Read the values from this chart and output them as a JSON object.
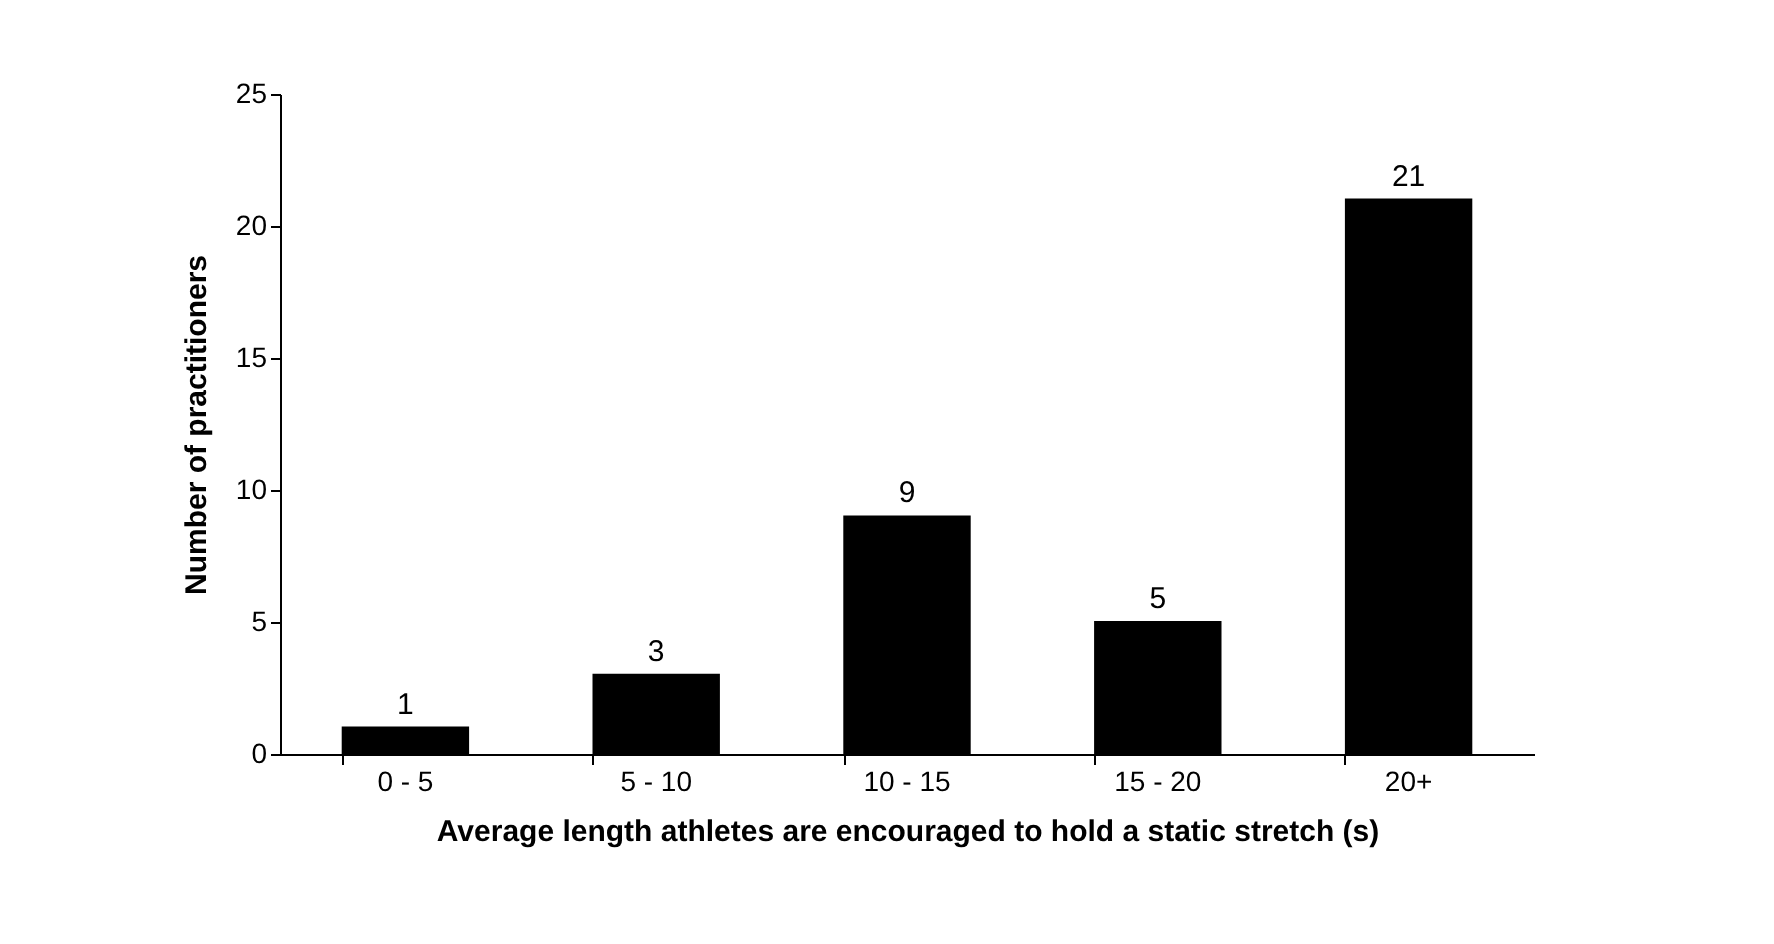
{
  "chart_data": {
    "type": "bar",
    "xlabel": "Average length athletes are encouraged to hold a static stretch (s)",
    "ylabel": "Number of practitioners",
    "categories": [
      "0 - 5",
      "5 - 10",
      "10 - 15",
      "15 - 20",
      "20+"
    ],
    "values": [
      1,
      3,
      9,
      5,
      21
    ],
    "color": "#000000",
    "ylim": [
      0,
      25
    ],
    "yticks": [
      0,
      5,
      10,
      15,
      20,
      25
    ],
    "grid": false,
    "data_labels": true
  }
}
